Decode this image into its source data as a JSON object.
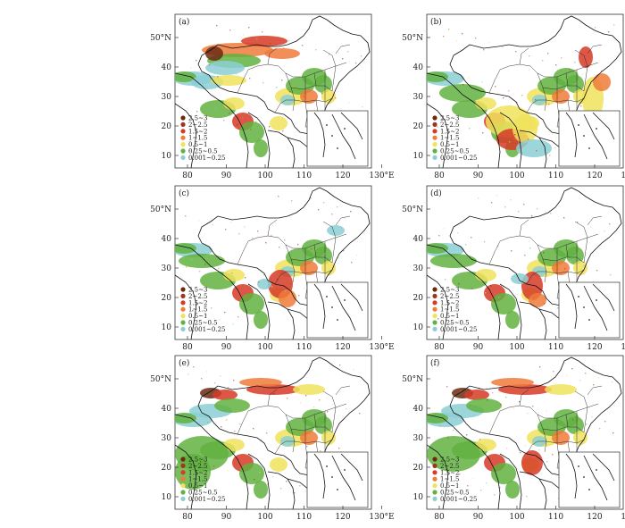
{
  "panel_labels": [
    "(a)",
    "(b)",
    "(c)",
    "(d)",
    "(e)",
    "(f)"
  ],
  "axes": {
    "lon_ticks": [
      "80",
      "90",
      "100",
      "110",
      "120",
      "130°E"
    ],
    "lat_ticks": [
      "10",
      "20",
      "30",
      "40",
      "50°N"
    ]
  },
  "legend": [
    {
      "label": "2.5~3",
      "color": "#6b2a12"
    },
    {
      "label": "2~2.5",
      "color": "#a0361c"
    },
    {
      "label": "1.5~2",
      "color": "#d73a27"
    },
    {
      "label": "1~1.5",
      "color": "#f07a3a"
    },
    {
      "label": "0.5~1",
      "color": "#f0e25c"
    },
    {
      "label": "0.25~0.5",
      "color": "#62b241"
    },
    {
      "label": "0.001~0.25",
      "color": "#8ccfd3"
    }
  ]
}
